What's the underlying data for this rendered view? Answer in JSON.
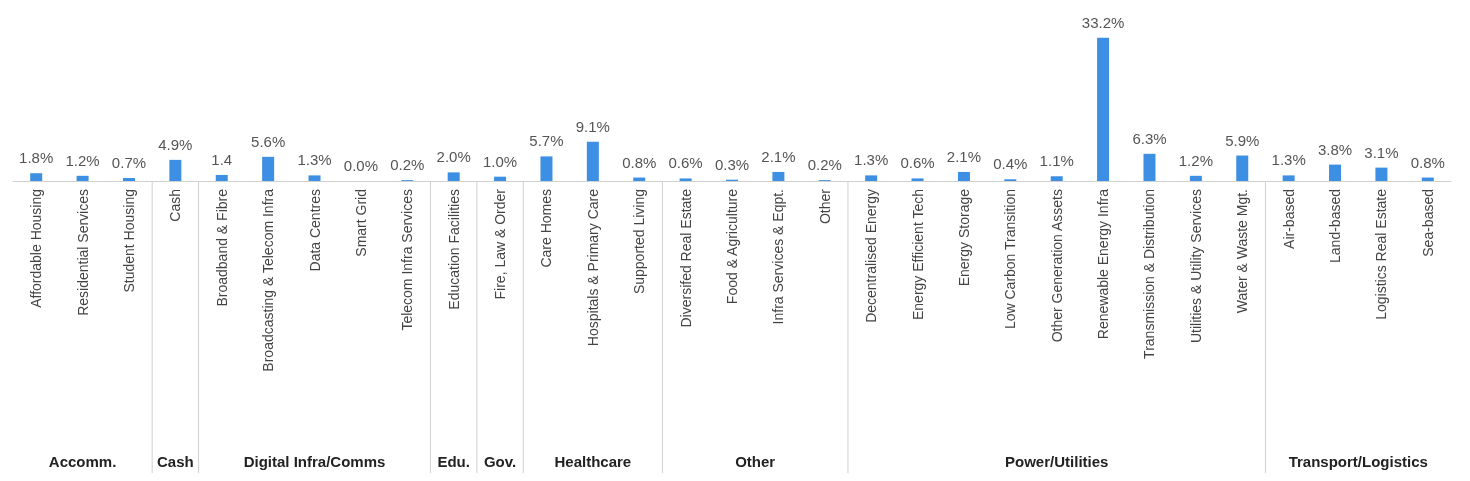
{
  "chart_data": {
    "type": "bar",
    "color": "#3c8fe2",
    "categories": [
      "Affordable Housing",
      "Residential Services",
      "Student Housing",
      "Cash",
      "Broadband & Fibre",
      "Broadcasting & Telecom Infra",
      "Data Centres",
      "Smart Grid",
      "Telecom Infra Services",
      "Education Facilities",
      "Fire, Law & Order",
      "Care Homes",
      "Hospitals & Primary Care",
      "Supported Living",
      "Diversifed Real Estate",
      "Food & Agriculture",
      "Infra Services & Eqpt.",
      "Other",
      "Decentralised Energy",
      "Energy Efficient Tech",
      "Energy Storage",
      "Low Carbon Transition",
      "Other Generation Assets",
      "Renewable Energy Infra",
      "Transmission & Distribution",
      "Utilities & Utility Services",
      "Water & Waste Mgt.",
      "Air-based",
      "Land-based",
      "Logistics Real Estate",
      "Sea-based"
    ],
    "values": [
      1.8,
      1.2,
      0.7,
      4.9,
      1.4,
      5.6,
      1.3,
      0.0,
      0.2,
      2.0,
      1.0,
      5.7,
      9.1,
      0.8,
      0.6,
      0.3,
      2.1,
      0.2,
      1.3,
      0.6,
      2.1,
      0.4,
      1.1,
      33.2,
      6.3,
      1.2,
      5.9,
      1.3,
      3.8,
      3.1,
      0.8
    ],
    "value_labels": [
      "1.8%",
      "1.2%",
      "0.7%",
      "4.9%",
      "1.4",
      "5.6%",
      "1.3%",
      "0.0%",
      "0.2%",
      "2.0%",
      "1.0%",
      "5.7%",
      "9.1%",
      "0.8%",
      "0.6%",
      "0.3%",
      "2.1%",
      "0.2%",
      "1.3%",
      "0.6%",
      "2.1%",
      "0.4%",
      "1.1%",
      "33.2%",
      "6.3%",
      "1.2%",
      "5.9%",
      "1.3%",
      "3.8%",
      "3.1%",
      "0.8%"
    ],
    "annotations": [
      "Accomm.",
      "Cash",
      "Digital Infra/Comms",
      "Edu.",
      "Gov.",
      "Healthcare",
      "Other",
      "Power/Utilities",
      "Transport/Logistics"
    ],
    "grid": false
  }
}
